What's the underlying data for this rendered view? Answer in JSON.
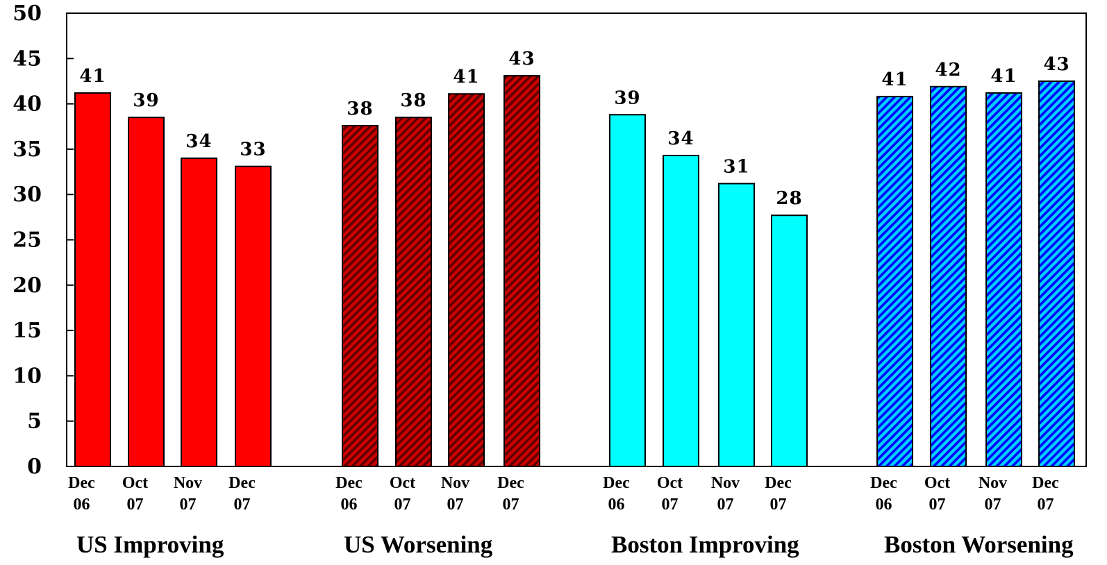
{
  "chart_data": {
    "type": "bar",
    "ylim": [
      0,
      50
    ],
    "yticks": [
      "0",
      "5",
      "10",
      "15",
      "20",
      "25",
      "30",
      "35",
      "40",
      "45",
      "50"
    ],
    "grid": false,
    "groups": [
      {
        "name": "US Improving",
        "color": "#ff0000",
        "pattern": "solid",
        "categories": [
          [
            "Dec",
            "06"
          ],
          [
            "Oct",
            "07"
          ],
          [
            "Nov",
            "07"
          ],
          [
            "Dec",
            "07"
          ]
        ],
        "values": [
          41.2,
          38.5,
          34.0,
          33.1
        ],
        "labels": [
          "41",
          "39",
          "34",
          "33"
        ]
      },
      {
        "name": "US Worsening",
        "color": "#cc0000",
        "stripe_color": "#5a0000",
        "pattern": "hatched",
        "categories": [
          [
            "Dec",
            "06"
          ],
          [
            "Oct",
            "07"
          ],
          [
            "Nov",
            "07"
          ],
          [
            "Dec",
            "07"
          ]
        ],
        "values": [
          37.6,
          38.5,
          41.1,
          43.1
        ],
        "labels": [
          "38",
          "38",
          "41",
          "43"
        ]
      },
      {
        "name": "Boston Improving",
        "color": "#00ffff",
        "pattern": "solid",
        "categories": [
          [
            "Dec",
            "06"
          ],
          [
            "Oct",
            "07"
          ],
          [
            "Nov",
            "07"
          ],
          [
            "Dec",
            "07"
          ]
        ],
        "values": [
          38.8,
          34.3,
          31.2,
          27.7
        ],
        "labels": [
          "39",
          "34",
          "31",
          "28"
        ]
      },
      {
        "name": "Boston Worsening",
        "color": "#00ccff",
        "stripe_color": "#0000ff",
        "pattern": "hatched",
        "categories": [
          [
            "Dec",
            "06"
          ],
          [
            "Oct",
            "07"
          ],
          [
            "Nov",
            "07"
          ],
          [
            "Dec",
            "07"
          ]
        ],
        "values": [
          40.8,
          41.9,
          41.2,
          42.5
        ],
        "labels": [
          "41",
          "42",
          "41",
          "43"
        ]
      }
    ]
  }
}
